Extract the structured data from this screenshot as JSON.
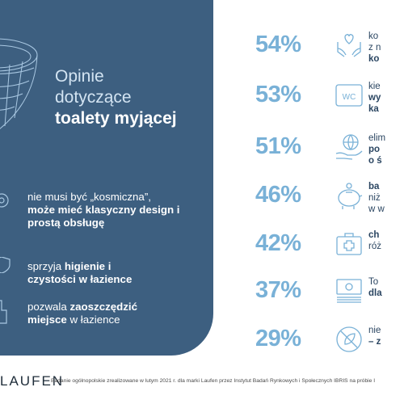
{
  "heading": {
    "line1": "Opinie",
    "line2": "dotyczące",
    "line3": "toalety myjącej"
  },
  "features": [
    {
      "pre": "nie musi być „kosmiczna”,",
      "bold": "może mieć klasyczny design i prostą obsługę",
      "post": ""
    },
    {
      "pre": "sprzyja ",
      "bold": "higienie i czystości w łazience",
      "post": ""
    },
    {
      "pre": "pozwala ",
      "bold": "zaoszczędzić miejsce",
      "post": " w łazience"
    }
  ],
  "stats": [
    {
      "percent": "54%",
      "icon": "heart-hands-icon",
      "l1": "ko",
      "l2": "z n",
      "l3": "ko"
    },
    {
      "percent": "53%",
      "icon": "wc-sign-icon",
      "wc": "WC",
      "l1": "kie",
      "l2": "wy",
      "l3": "ka"
    },
    {
      "percent": "51%",
      "icon": "globe-hand-icon",
      "l1": "elim",
      "l2": "po",
      "l3": "o ś"
    },
    {
      "percent": "46%",
      "icon": "piggy-bank-icon",
      "l1": "ba",
      "l2": "niż",
      "l3": "w w"
    },
    {
      "percent": "42%",
      "icon": "first-aid-kit-icon",
      "l1": "ch",
      "l2": "róż",
      "l3": ""
    },
    {
      "percent": "37%",
      "icon": "cash-stack-icon",
      "l1": "To",
      "l2": "dla",
      "l3": ""
    },
    {
      "percent": "29%",
      "icon": "no-leaf-icon",
      "l1": "nie",
      "l2": "– z",
      "l3": ""
    }
  ],
  "footer": {
    "logo": "LAUFEN",
    "note": "Badanie ogólnopolskie zrealizowane w lutym 2021 r. dla marki Laufen przez Instytut Badań Rynkowych i Społecznych IBRIS na próbie I"
  },
  "colors": {
    "panel": "#3d5f80",
    "accent": "#79b1d7",
    "text_dark": "#2a4561"
  }
}
